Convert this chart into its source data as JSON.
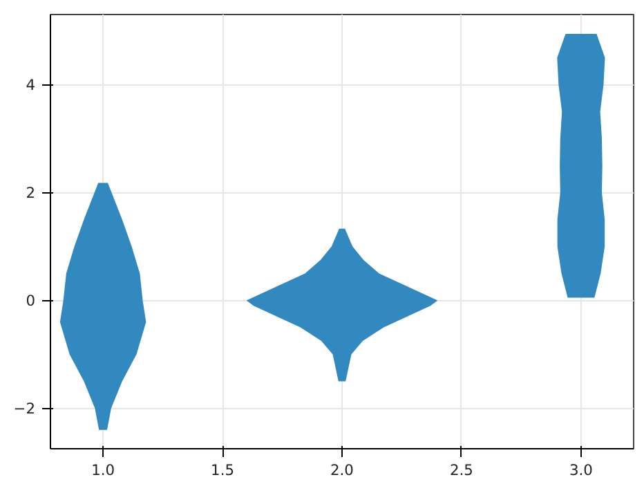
{
  "chart_data": {
    "type": "area",
    "xlim": [
      0.78,
      3.22
    ],
    "ylim": [
      -2.75,
      5.3
    ],
    "xticks": [
      {
        "value": 1.0,
        "label": "1.0"
      },
      {
        "value": 1.5,
        "label": "1.5"
      },
      {
        "value": 2.0,
        "label": "2.0"
      },
      {
        "value": 2.5,
        "label": "2.5"
      },
      {
        "value": 3.0,
        "label": "3.0"
      }
    ],
    "yticks": [
      -2,
      0,
      2,
      4
    ],
    "grid": true,
    "series": [
      {
        "color": "#3189c0",
        "x": [
          1.017,
          1.034,
          1.08,
          1.14,
          1.18,
          1.166,
          1.154,
          1.12,
          1.08,
          1.02,
          0.98,
          0.92,
          0.88,
          0.846,
          0.834,
          0.82,
          0.86,
          0.92,
          0.966,
          0.983
        ],
        "values": [
          -2.4,
          -2.0,
          -1.5,
          -1.0,
          -0.4,
          0.0,
          0.5,
          1.0,
          1.5,
          2.18,
          2.18,
          1.5,
          1.0,
          0.5,
          0.0,
          -0.4,
          -1.0,
          -1.5,
          -2.0,
          -2.4
        ]
      },
      {
        "color": "#3189c0",
        "x": [
          2.015,
          2.039,
          2.087,
          2.174,
          2.37,
          2.4,
          2.155,
          2.09,
          2.044,
          2.012,
          1.988,
          1.956,
          1.91,
          1.845,
          1.6,
          1.63,
          1.826,
          1.913,
          1.961,
          1.985
        ],
        "values": [
          -1.5,
          -1.0,
          -0.75,
          -0.5,
          -0.1,
          0.0,
          0.5,
          0.75,
          1.0,
          1.33,
          1.33,
          1.0,
          0.75,
          0.5,
          0.0,
          -0.1,
          -0.5,
          -0.75,
          -1.0,
          -1.5
        ]
      },
      {
        "color": "#3189c0",
        "x": [
          3.056,
          3.082,
          3.099,
          3.099,
          3.087,
          3.089,
          3.087,
          3.08,
          3.094,
          3.1,
          3.065,
          2.935,
          2.9,
          2.906,
          2.92,
          2.913,
          2.911,
          2.913,
          2.901,
          2.901,
          2.918,
          2.944
        ],
        "values": [
          0.05,
          0.5,
          1.0,
          1.5,
          2.0,
          2.5,
          3.0,
          3.5,
          4.0,
          4.5,
          4.94,
          4.94,
          4.5,
          4.0,
          3.5,
          3.0,
          2.5,
          2.0,
          1.5,
          1.0,
          0.5,
          0.05
        ]
      }
    ]
  }
}
